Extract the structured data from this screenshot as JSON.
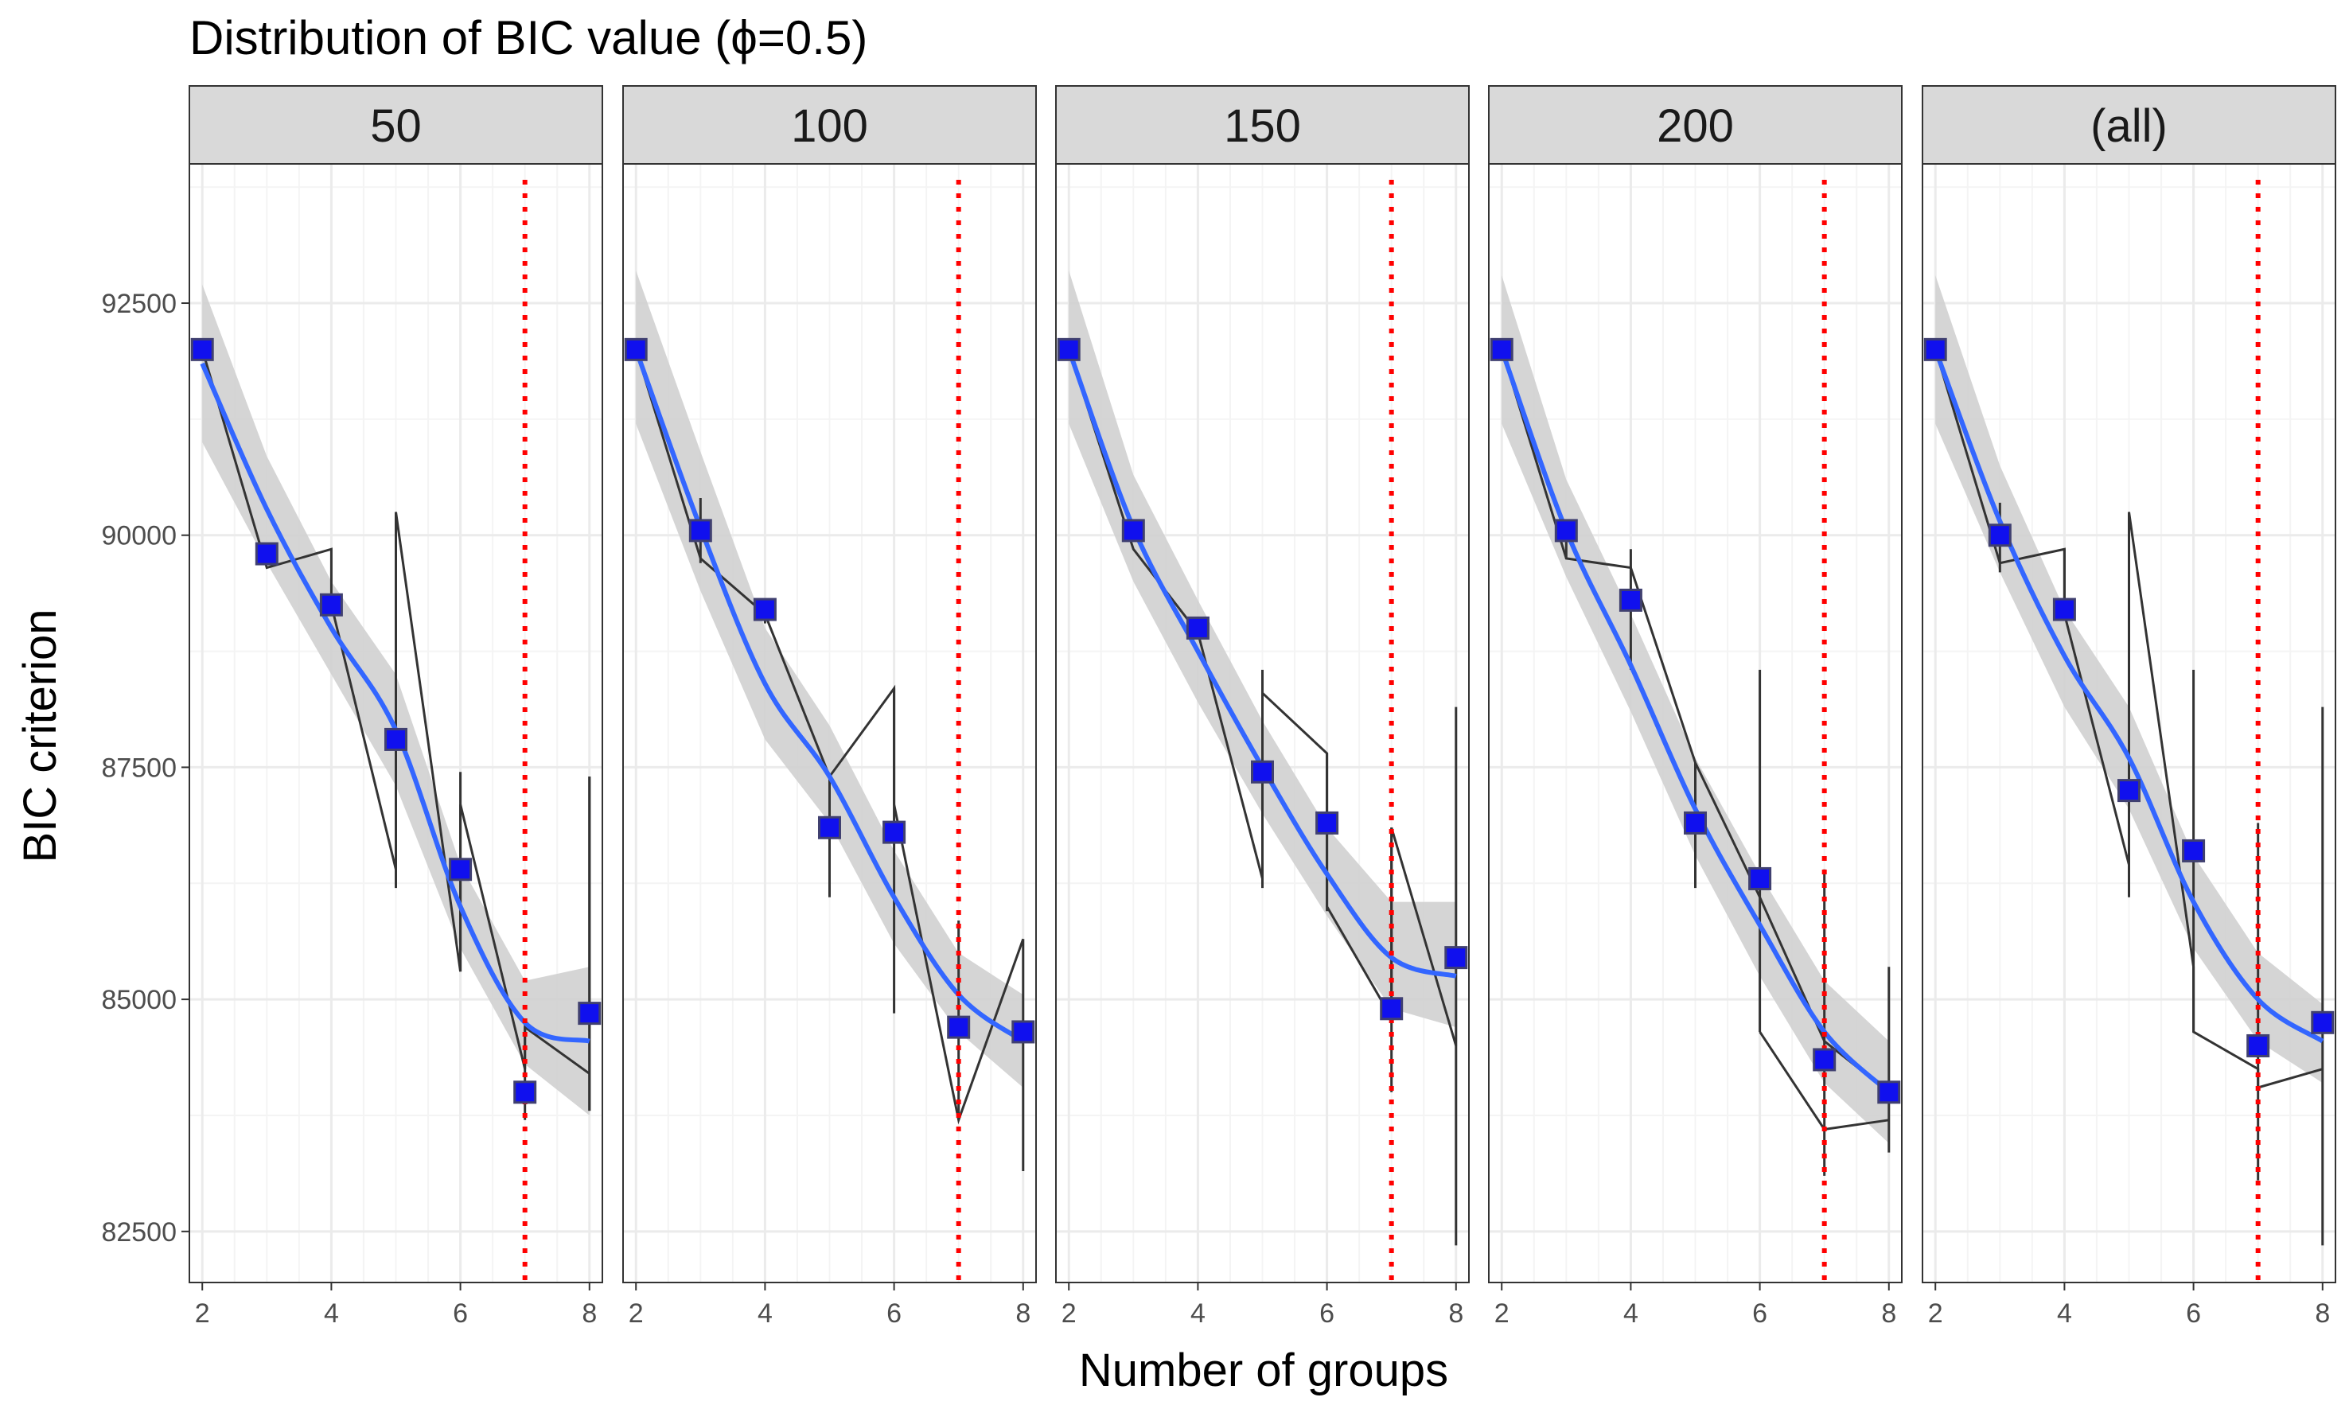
{
  "chart_data": {
    "type": "line",
    "title": "Distribution of BIC value (ϕ=0.5)",
    "xlabel": "Number of groups",
    "ylabel": "BIC criterion",
    "xlim": [
      1.8,
      8.2
    ],
    "ylim": [
      81950,
      94000
    ],
    "x_ticks": [
      2,
      4,
      6,
      8
    ],
    "y_ticks": [
      82500,
      85000,
      87500,
      90000,
      92500
    ],
    "x_tick_labels": [
      "2",
      "4",
      "6",
      "8"
    ],
    "y_tick_labels": [
      "82500",
      "85000",
      "87500",
      "90000",
      "92500"
    ],
    "grid": true,
    "reference_x": 7,
    "colors": {
      "point_fill": "#1010ee",
      "point_outline": "#404070",
      "smooth_line": "#3366ff",
      "ribbon": "#d0d0d0",
      "range_line": "#333333",
      "reference_line": "#ff0000",
      "strip_bg": "#d9d9d9",
      "grid_major": "#ebebeb",
      "grid_minor": "#f4f4f4"
    },
    "panels": [
      {
        "label": "50",
        "x": [
          2,
          3,
          4,
          5,
          6,
          7,
          8
        ],
        "points": [
          92000,
          89800,
          89250,
          87800,
          86400,
          84000,
          84850
        ],
        "range_path": [
          [
            2,
            92000
          ],
          [
            3,
            89650
          ],
          [
            4,
            89850
          ],
          [
            4,
            89250
          ],
          [
            5,
            86400
          ],
          [
            5,
            90250
          ],
          [
            6,
            85300
          ],
          [
            6,
            87100
          ],
          [
            7,
            84250
          ],
          [
            7,
            84700
          ],
          [
            8,
            84200
          ],
          [
            8,
            87400
          ],
          [
            8,
            83800
          ]
        ],
        "segments": [
          [
            5,
            86200,
            90250
          ],
          [
            6,
            85300,
            87450
          ],
          [
            7,
            83700,
            84700
          ],
          [
            8,
            83800,
            87400
          ]
        ],
        "smooth": [
          91850,
          90280,
          89000,
          87900,
          86000,
          84750,
          84550
        ],
        "ribbon_lower": [
          91000,
          89700,
          88500,
          87300,
          85550,
          84300,
          83750
        ],
        "ribbon_upper": [
          92700,
          90850,
          89500,
          88500,
          86450,
          85200,
          85350
        ]
      },
      {
        "label": "100",
        "x": [
          2,
          3,
          4,
          5,
          6,
          7,
          8
        ],
        "points": [
          92000,
          90050,
          89200,
          86850,
          86800,
          84700,
          84650
        ],
        "range_path": [
          [
            2,
            92000
          ],
          [
            3,
            89750
          ],
          [
            4,
            89150
          ],
          [
            5,
            87400
          ],
          [
            6,
            88350
          ],
          [
            6,
            87100
          ],
          [
            7,
            83700
          ],
          [
            8,
            85650
          ]
        ],
        "segments": [
          [
            3,
            89700,
            90400
          ],
          [
            4,
            89050,
            89250
          ],
          [
            5,
            86100,
            87400
          ],
          [
            6,
            84850,
            88350
          ],
          [
            7,
            83700,
            85850
          ],
          [
            8,
            83150,
            85650
          ]
        ],
        "smooth": [
          92000,
          90080,
          88400,
          87400,
          86100,
          85050,
          84550
        ],
        "ribbon_lower": [
          91200,
          89400,
          87800,
          86900,
          85600,
          84650,
          84050
        ],
        "ribbon_upper": [
          92850,
          90900,
          89000,
          87950,
          86600,
          85500,
          85050
        ]
      },
      {
        "label": "150",
        "x": [
          2,
          3,
          4,
          5,
          6,
          7,
          8
        ],
        "points": [
          92000,
          90050,
          89000,
          87450,
          86900,
          84900,
          85450
        ],
        "range_path": [
          [
            2,
            92000
          ],
          [
            3,
            89850
          ],
          [
            4,
            88950
          ],
          [
            5,
            86300
          ],
          [
            5,
            88300
          ],
          [
            6,
            87650
          ],
          [
            6,
            86000
          ],
          [
            7,
            84800
          ],
          [
            7,
            86850
          ],
          [
            8,
            84500
          ]
        ],
        "segments": [
          [
            5,
            86200,
            88550
          ],
          [
            6,
            85950,
            87650
          ],
          [
            7,
            84000,
            86850
          ],
          [
            8,
            82350,
            88150
          ]
        ],
        "smooth": [
          92000,
          90080,
          88750,
          87500,
          86350,
          85450,
          85250
        ],
        "ribbon_lower": [
          91200,
          89500,
          88200,
          87000,
          85900,
          84900,
          84700
        ],
        "ribbon_upper": [
          92850,
          90650,
          89300,
          88000,
          86850,
          86050,
          86050
        ]
      },
      {
        "label": "200",
        "x": [
          2,
          3,
          4,
          5,
          6,
          7,
          8
        ],
        "points": [
          92000,
          90050,
          89300,
          86900,
          86300,
          84350,
          84000
        ],
        "range_path": [
          [
            2,
            92000
          ],
          [
            3,
            89750
          ],
          [
            4,
            89650
          ],
          [
            5,
            87550
          ],
          [
            6,
            86100
          ],
          [
            7,
            84550
          ],
          [
            8,
            84000
          ]
        ],
        "segments": [
          [
            3,
            89750,
            90100
          ],
          [
            4,
            88550,
            89850
          ],
          [
            5,
            86200,
            87550
          ],
          [
            6,
            84650,
            88550
          ],
          [
            7,
            83100,
            86400
          ],
          [
            8,
            83350,
            85350
          ]
        ],
        "path2": [
          [
            6,
            84650
          ],
          [
            7,
            83600
          ],
          [
            8,
            83700
          ]
        ],
        "smooth": [
          92000,
          90050,
          88600,
          87050,
          85800,
          84650,
          84000
        ],
        "ribbon_lower": [
          91200,
          89550,
          88100,
          86550,
          85250,
          84100,
          83450
        ],
        "ribbon_upper": [
          92800,
          90600,
          89150,
          87600,
          86350,
          85200,
          84550
        ]
      },
      {
        "label": "(all)",
        "x": [
          2,
          3,
          4,
          5,
          6,
          7,
          8
        ],
        "points": [
          92000,
          90000,
          89200,
          87250,
          86600,
          84500,
          84750
        ],
        "range_path": [
          [
            2,
            92000
          ],
          [
            3,
            89700
          ],
          [
            4,
            89850
          ],
          [
            4,
            89150
          ],
          [
            5,
            86450
          ],
          [
            5,
            90250
          ],
          [
            6,
            85350
          ],
          [
            6,
            84650
          ],
          [
            7,
            84250
          ],
          [
            7,
            84050
          ],
          [
            8,
            84250
          ]
        ],
        "segments": [
          [
            3,
            89600,
            90350
          ],
          [
            4,
            89100,
            89850
          ],
          [
            5,
            86100,
            90250
          ],
          [
            6,
            84650,
            88550
          ],
          [
            7,
            83050,
            86900
          ],
          [
            8,
            82350,
            88150
          ]
        ],
        "smooth": [
          92000,
          90150,
          88700,
          87600,
          86050,
          85000,
          84550
        ],
        "ribbon_lower": [
          91200,
          89600,
          88150,
          87050,
          85550,
          84550,
          84100
        ],
        "ribbon_upper": [
          92800,
          90750,
          89200,
          88150,
          86550,
          85500,
          84950
        ]
      }
    ]
  }
}
